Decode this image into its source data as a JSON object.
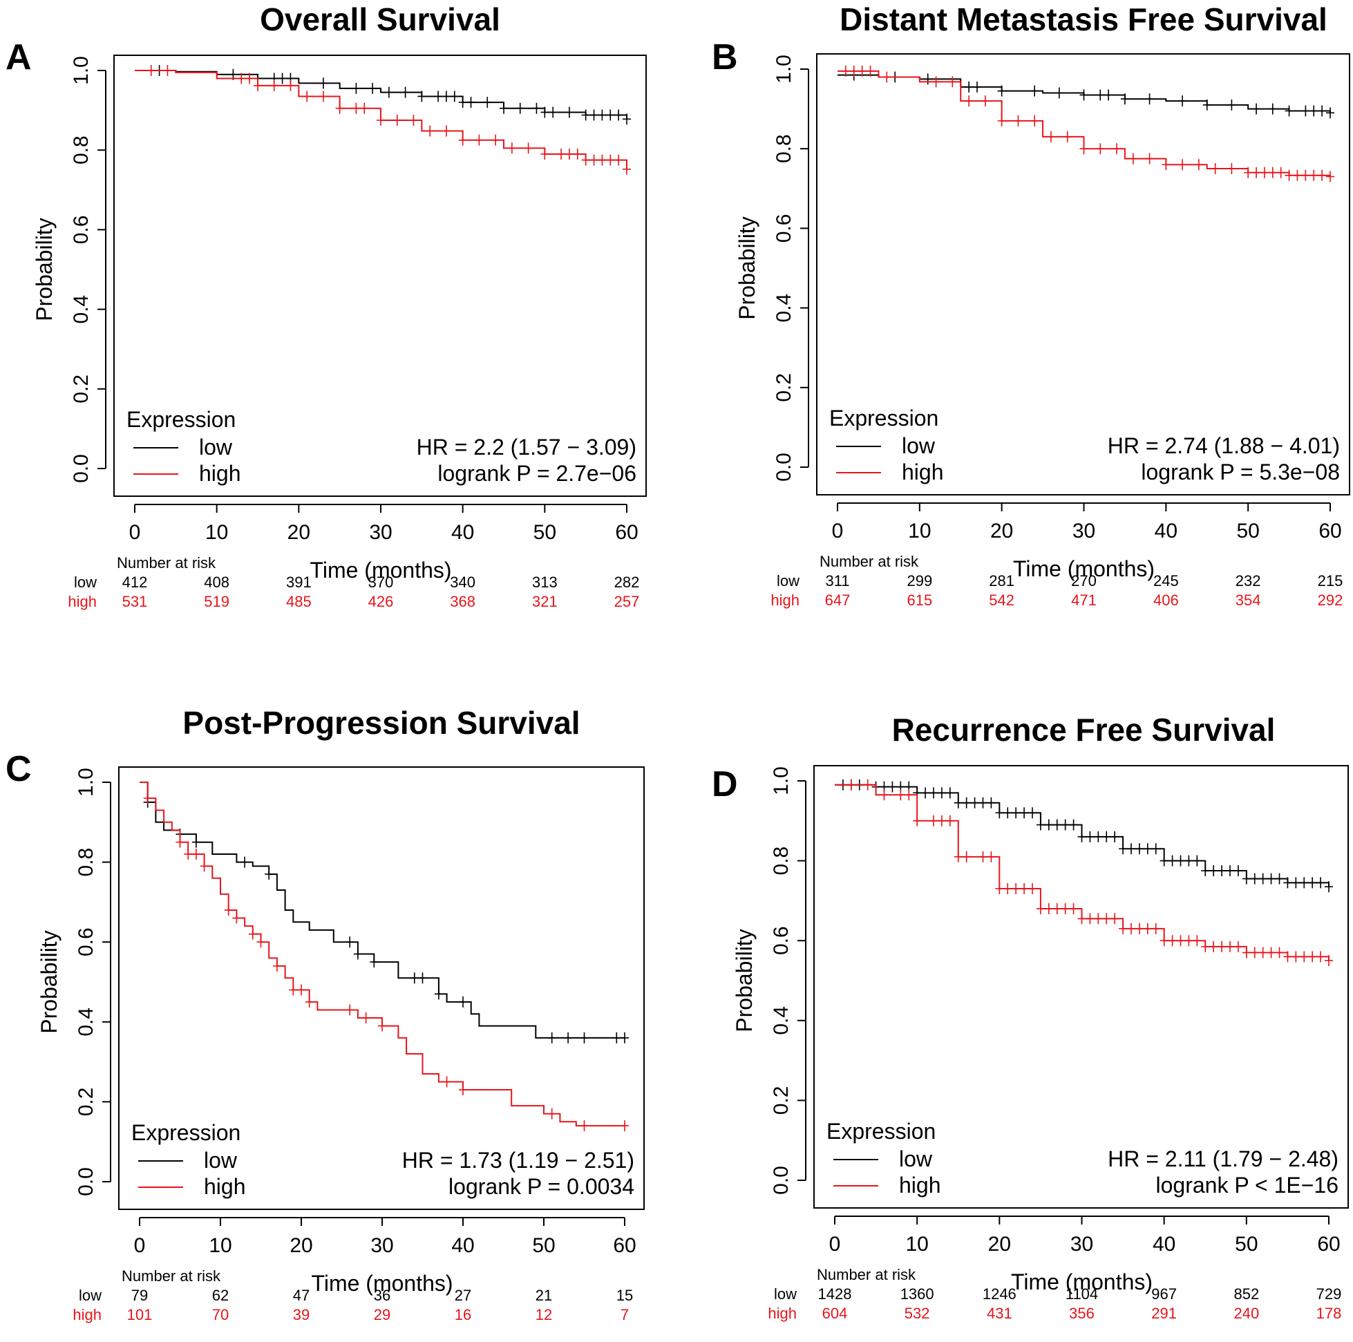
{
  "chart_data": [
    {
      "panel": "A",
      "type": "line",
      "title": "Overall Survival",
      "xlabel": "Time (months)",
      "ylabel": "Probability",
      "xlim": [
        0,
        60
      ],
      "ylim": [
        0,
        1
      ],
      "xticks": [
        "0",
        "10",
        "20",
        "30",
        "40",
        "50",
        "60"
      ],
      "yticks": [
        "0.0",
        "0.2",
        "0.4",
        "0.6",
        "0.8",
        "1.0"
      ],
      "legend_title": "Expression",
      "hr_text": "HR = 2.2 (1.57 − 3.09)",
      "p_text": "logrank P = 2.7e−06",
      "risk_title": "Number at risk",
      "colors": {
        "low": "#000000",
        "high": "#e8141b"
      },
      "series": [
        {
          "name": "low",
          "x": [
            0,
            5,
            10,
            15,
            20,
            25,
            30,
            35,
            40,
            45,
            50,
            55,
            60
          ],
          "y": [
            1.0,
            0.997,
            0.99,
            0.98,
            0.968,
            0.955,
            0.945,
            0.935,
            0.92,
            0.905,
            0.895,
            0.888,
            0.878
          ],
          "censor_x": [
            3,
            12,
            17,
            18,
            19,
            23,
            27,
            29,
            31,
            33,
            35,
            37,
            38,
            39,
            40,
            41,
            43,
            45,
            47,
            49,
            50,
            51,
            53,
            55,
            56,
            57,
            58,
            59,
            60
          ]
        },
        {
          "name": "high",
          "x": [
            0,
            5,
            10,
            15,
            20,
            25,
            30,
            35,
            40,
            45,
            50,
            55,
            60
          ],
          "y": [
            1.0,
            0.995,
            0.98,
            0.962,
            0.935,
            0.905,
            0.875,
            0.848,
            0.825,
            0.805,
            0.79,
            0.775,
            0.752
          ],
          "censor_x": [
            2,
            4,
            13,
            14,
            15,
            17,
            19,
            21,
            23,
            25,
            27,
            28,
            30,
            32,
            34,
            36,
            38,
            40,
            42,
            44,
            46,
            48,
            50,
            52,
            53,
            54,
            55,
            56,
            57,
            58,
            59,
            60
          ]
        }
      ],
      "risk": {
        "times": [
          "0",
          "10",
          "20",
          "30",
          "40",
          "50",
          "60"
        ],
        "low_label": "low",
        "high_label": "high",
        "low": [
          "412",
          "408",
          "391",
          "370",
          "340",
          "313",
          "282"
        ],
        "high": [
          "531",
          "519",
          "485",
          "426",
          "368",
          "321",
          "257"
        ]
      }
    },
    {
      "panel": "B",
      "type": "line",
      "title": "Distant Metastasis Free Survival",
      "xlabel": "Time (months)",
      "ylabel": "Probability",
      "xlim": [
        0,
        60
      ],
      "ylim": [
        0,
        1
      ],
      "xticks": [
        "0",
        "10",
        "20",
        "30",
        "40",
        "50",
        "60"
      ],
      "yticks": [
        "0.0",
        "0.2",
        "0.4",
        "0.6",
        "0.8",
        "1.0"
      ],
      "legend_title": "Expression",
      "hr_text": "HR = 2.74 (1.88 − 4.01)",
      "p_text": "logrank P = 5.3e−08",
      "risk_title": "Number at risk",
      "colors": {
        "low": "#000000",
        "high": "#e8141b"
      },
      "series": [
        {
          "name": "low",
          "x": [
            0,
            5,
            10,
            15,
            20,
            25,
            30,
            35,
            40,
            45,
            50,
            55,
            60
          ],
          "y": [
            0.985,
            0.98,
            0.975,
            0.955,
            0.945,
            0.94,
            0.935,
            0.925,
            0.92,
            0.91,
            0.9,
            0.895,
            0.89
          ],
          "censor_x": [
            2,
            7,
            11,
            16,
            17,
            20,
            24,
            27,
            30,
            32,
            33,
            35,
            38,
            42,
            45,
            48,
            51,
            53,
            55,
            57,
            58,
            59,
            60
          ]
        },
        {
          "name": "high",
          "x": [
            0,
            5,
            10,
            15,
            20,
            25,
            30,
            35,
            40,
            45,
            50,
            55,
            60
          ],
          "y": [
            0.995,
            0.98,
            0.968,
            0.92,
            0.87,
            0.83,
            0.8,
            0.775,
            0.76,
            0.75,
            0.74,
            0.733,
            0.73
          ],
          "censor_x": [
            1,
            2,
            3,
            4,
            6,
            12,
            14,
            16,
            18,
            20,
            22,
            24,
            26,
            28,
            30,
            32,
            34,
            36,
            38,
            40,
            42,
            44,
            46,
            48,
            50,
            51,
            52,
            53,
            54,
            55,
            56,
            57,
            58,
            59,
            60
          ]
        }
      ],
      "risk": {
        "times": [
          "0",
          "10",
          "20",
          "30",
          "40",
          "50",
          "60"
        ],
        "low_label": "low",
        "high_label": "high",
        "low": [
          "311",
          "299",
          "281",
          "270",
          "245",
          "232",
          "215"
        ],
        "high": [
          "647",
          "615",
          "542",
          "471",
          "406",
          "354",
          "292"
        ]
      }
    },
    {
      "panel": "C",
      "type": "line",
      "title": "Post-Progression Survival",
      "xlabel": "Time (months)",
      "ylabel": "Probability",
      "xlim": [
        0,
        60
      ],
      "ylim": [
        0,
        1
      ],
      "xticks": [
        "0",
        "10",
        "20",
        "30",
        "40",
        "50",
        "60"
      ],
      "yticks": [
        "0.0",
        "0.2",
        "0.4",
        "0.6",
        "0.8",
        "1.0"
      ],
      "legend_title": "Expression",
      "hr_text": "HR = 1.73 (1.19 − 2.51)",
      "p_text": "logrank P = 0.0034",
      "risk_title": "Number at risk",
      "colors": {
        "low": "#000000",
        "high": "#e8141b"
      },
      "series": [
        {
          "name": "low",
          "x": [
            0,
            1,
            2,
            3,
            5,
            7,
            9,
            12,
            14,
            16,
            17,
            18,
            19,
            21,
            24,
            27,
            29,
            32,
            34,
            37,
            38,
            41,
            42,
            49,
            60
          ],
          "y": [
            1.0,
            0.95,
            0.9,
            0.88,
            0.87,
            0.85,
            0.82,
            0.8,
            0.79,
            0.77,
            0.73,
            0.68,
            0.65,
            0.63,
            0.6,
            0.57,
            0.55,
            0.51,
            0.51,
            0.47,
            0.45,
            0.42,
            0.39,
            0.36,
            0.36
          ],
          "censor_x": [
            1,
            5,
            7,
            13,
            16,
            26,
            27,
            29,
            34,
            35,
            37,
            40,
            51,
            53,
            55,
            59,
            60
          ]
        },
        {
          "name": "high",
          "x": [
            0,
            1,
            2,
            3,
            4,
            5,
            6,
            8,
            9,
            10,
            11,
            12,
            13,
            14,
            15,
            16,
            17,
            18,
            19,
            21,
            22,
            24,
            27,
            30,
            32,
            33,
            35,
            37,
            40,
            46,
            50,
            52,
            54,
            60
          ],
          "y": [
            1.0,
            0.96,
            0.93,
            0.9,
            0.88,
            0.85,
            0.82,
            0.79,
            0.76,
            0.72,
            0.68,
            0.66,
            0.64,
            0.62,
            0.6,
            0.56,
            0.54,
            0.51,
            0.48,
            0.45,
            0.43,
            0.43,
            0.41,
            0.39,
            0.36,
            0.32,
            0.27,
            0.25,
            0.23,
            0.19,
            0.17,
            0.15,
            0.14,
            0.14
          ],
          "censor_x": [
            1,
            5,
            6,
            7,
            8,
            11,
            12,
            14,
            15,
            17,
            19,
            20,
            21,
            26,
            28,
            30,
            38,
            40,
            51,
            55,
            60
          ]
        }
      ],
      "risk": {
        "times": [
          "0",
          "10",
          "20",
          "30",
          "40",
          "50",
          "60"
        ],
        "low_label": "low",
        "high_label": "high",
        "low": [
          "79",
          "62",
          "47",
          "36",
          "27",
          "21",
          "15"
        ],
        "high": [
          "101",
          "70",
          "39",
          "29",
          "16",
          "12",
          "7"
        ]
      }
    },
    {
      "panel": "D",
      "type": "line",
      "title": "Recurrence Free Survival",
      "xlabel": "Time (months)",
      "ylabel": "Probability",
      "xlim": [
        0,
        60
      ],
      "ylim": [
        0,
        1
      ],
      "xticks": [
        "0",
        "10",
        "20",
        "30",
        "40",
        "50",
        "60"
      ],
      "yticks": [
        "0.0",
        "0.2",
        "0.4",
        "0.6",
        "0.8",
        "1.0"
      ],
      "legend_title": "Expression",
      "hr_text": "HR = 2.11 (1.79 − 2.48)",
      "p_text": "logrank P < 1E−16",
      "risk_title": "Number at risk",
      "colors": {
        "low": "#000000",
        "high": "#e8141b"
      },
      "series": [
        {
          "name": "low",
          "x": [
            0,
            5,
            10,
            15,
            20,
            25,
            30,
            35,
            40,
            45,
            50,
            55,
            60
          ],
          "y": [
            0.99,
            0.985,
            0.97,
            0.945,
            0.92,
            0.89,
            0.86,
            0.83,
            0.8,
            0.775,
            0.755,
            0.745,
            0.735
          ],
          "censor_x": [
            1,
            2,
            3,
            5,
            6,
            7,
            8,
            9,
            10,
            11,
            12,
            13,
            14,
            15,
            16,
            17,
            18,
            19,
            20,
            21,
            22,
            23,
            24,
            25,
            26,
            27,
            28,
            29,
            30,
            31,
            32,
            33,
            34,
            35,
            36,
            37,
            38,
            39,
            40,
            41,
            42,
            43,
            44,
            45,
            46,
            47,
            48,
            49,
            50,
            51,
            52,
            53,
            54,
            55,
            56,
            57,
            58,
            59,
            60
          ]
        },
        {
          "name": "high",
          "x": [
            0,
            5,
            10,
            15,
            20,
            25,
            30,
            35,
            40,
            45,
            50,
            55,
            60
          ],
          "y": [
            0.99,
            0.965,
            0.9,
            0.81,
            0.73,
            0.68,
            0.655,
            0.63,
            0.6,
            0.585,
            0.57,
            0.56,
            0.55
          ],
          "censor_x": [
            2,
            4,
            6,
            8,
            9,
            10,
            12,
            13,
            14,
            15,
            16,
            18,
            19,
            20,
            21,
            22,
            23,
            24,
            25,
            26,
            27,
            28,
            29,
            30,
            31,
            32,
            33,
            34,
            35,
            36,
            37,
            38,
            39,
            40,
            41,
            42,
            43,
            44,
            45,
            46,
            47,
            48,
            49,
            50,
            51,
            52,
            53,
            54,
            55,
            56,
            57,
            58,
            59,
            60
          ]
        }
      ],
      "risk": {
        "times": [
          "0",
          "10",
          "20",
          "30",
          "40",
          "50",
          "60"
        ],
        "low_label": "low",
        "high_label": "high",
        "low": [
          "1428",
          "1360",
          "1246",
          "1104",
          "967",
          "852",
          "729"
        ],
        "high": [
          "604",
          "532",
          "431",
          "356",
          "291",
          "240",
          "178"
        ]
      }
    }
  ]
}
